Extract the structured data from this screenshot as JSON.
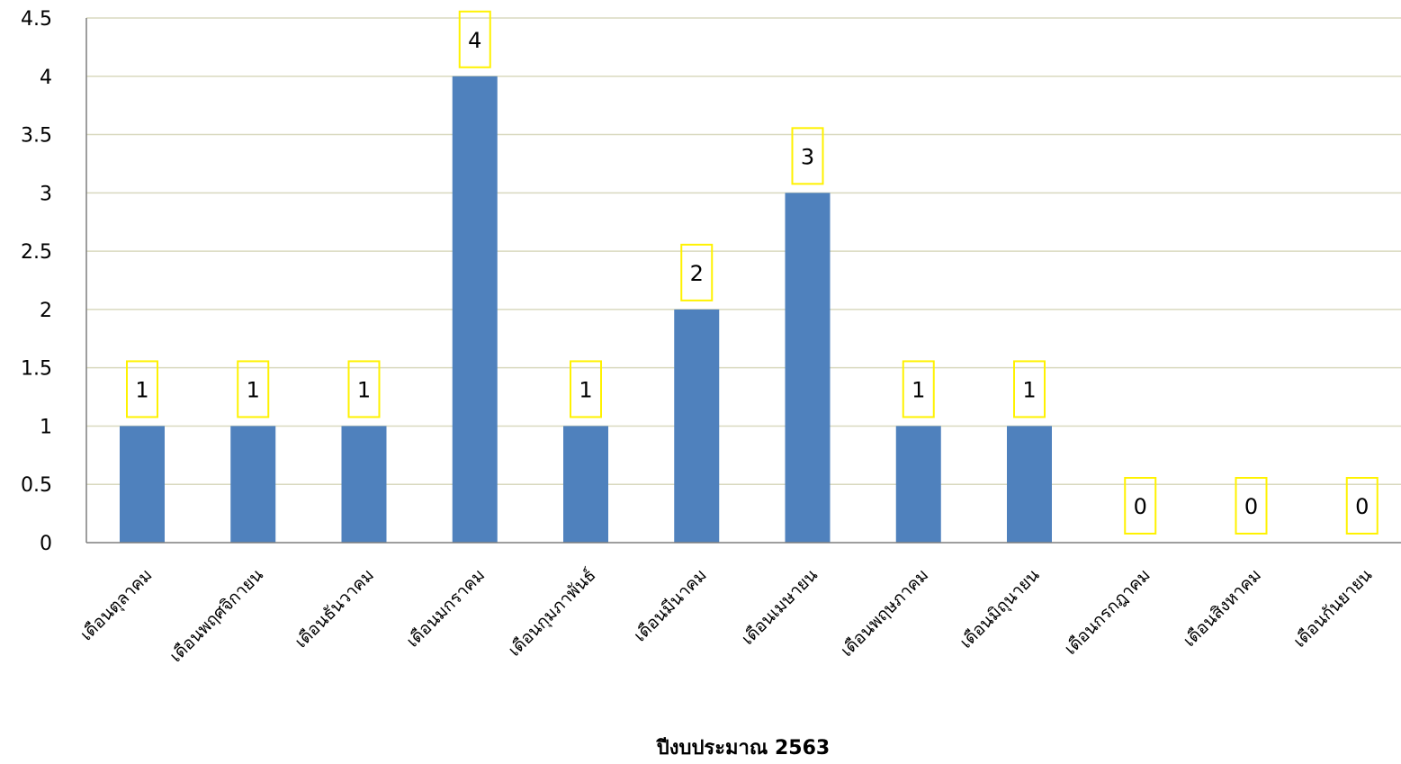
{
  "chart_data": {
    "type": "bar",
    "categories": [
      "เดือนตุลาคม",
      "เดือนพฤศจิกายน",
      "เดือนธันวาคม",
      "เดือนมกราคม",
      "เดือนกุมภาพันธ์",
      "เดือนมีนาคม",
      "เดือนเมษายน",
      "เดือนพฤษภาคม",
      "เดือนมิถุนายน",
      "เดือนกรกฎาคม",
      "เดือนสิงหาคม",
      "เดือนกันยายน"
    ],
    "values": [
      1,
      1,
      1,
      4,
      1,
      2,
      3,
      1,
      1,
      0,
      0,
      0
    ],
    "xlabel": "ปีงบประมาณ 2563",
    "ylabel": "",
    "ylim": [
      0,
      4.5
    ],
    "yticks": [
      "0",
      "0.5",
      "1",
      "1.5",
      "2",
      "2.5",
      "3",
      "3.5",
      "4",
      "4.5"
    ],
    "grid": true,
    "legend": "none",
    "colors": {
      "bar": "#4F81BD",
      "gridline": "#D9D9BF",
      "axis": "#7F7F7F",
      "label_box": "#FFF200"
    }
  }
}
